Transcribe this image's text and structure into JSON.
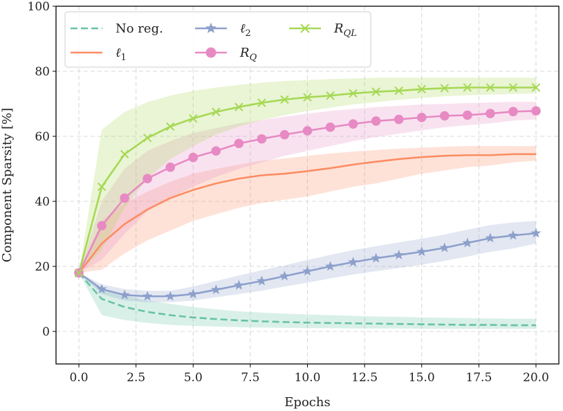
{
  "chart_data": {
    "type": "line",
    "title": "",
    "xlabel": "Epochs",
    "ylabel": "Component Sparsity [%]",
    "xlim": [
      -1,
      21
    ],
    "ylim": [
      -10,
      100
    ],
    "xticks": [
      0,
      2.5,
      5,
      7.5,
      10,
      12.5,
      15,
      17.5,
      20
    ],
    "xtick_labels": [
      "0.0",
      "2.5",
      "5.0",
      "7.5",
      "10.0",
      "12.5",
      "15.0",
      "17.5",
      "20.0"
    ],
    "yticks": [
      0,
      20,
      40,
      60,
      80,
      100
    ],
    "ytick_labels": [
      "0",
      "20",
      "40",
      "60",
      "80",
      "100"
    ],
    "grid": true,
    "legend_position": "top-left",
    "x": [
      0,
      1,
      2,
      3,
      4,
      5,
      6,
      7,
      8,
      9,
      10,
      11,
      12,
      13,
      14,
      15,
      16,
      17,
      18,
      19,
      20
    ],
    "series": [
      {
        "name": "No reg.",
        "color": "#66c2a5",
        "style": "dashed",
        "marker": "none",
        "values": [
          18,
          10,
          7.5,
          6,
          5,
          4.3,
          3.8,
          3.4,
          3.1,
          2.9,
          2.7,
          2.6,
          2.5,
          2.4,
          2.3,
          2.2,
          2.1,
          2.0,
          2.0,
          1.9,
          1.9
        ],
        "lower": [
          18,
          5,
          3.5,
          2.6,
          2.0,
          1.7,
          1.5,
          1.3,
          1.2,
          1.1,
          1.0,
          1.0,
          0.9,
          0.9,
          0.9,
          0.8,
          0.8,
          0.8,
          0.8,
          0.8,
          0.8
        ],
        "upper": [
          18,
          13,
          11,
          9.5,
          8.5,
          7.5,
          6.8,
          6.2,
          5.8,
          5.5,
          5.2,
          5.0,
          4.8,
          4.6,
          4.5,
          4.3,
          4.2,
          4.1,
          4.0,
          3.9,
          3.9
        ]
      },
      {
        "name": "ℓ1",
        "color": "#fc8d62",
        "style": "solid",
        "marker": "none",
        "values": [
          18,
          27,
          33,
          37.5,
          41,
          43.5,
          45.5,
          47,
          48,
          48.5,
          49.3,
          50.2,
          51.3,
          52.2,
          53,
          53.6,
          54,
          54.2,
          54.2,
          54.5,
          54.5
        ],
        "lower": [
          18,
          19,
          24,
          28,
          31,
          34,
          36,
          38,
          39.5,
          40.5,
          41.5,
          43,
          44.5,
          45.5,
          47,
          48.5,
          49.5,
          50.5,
          51,
          52,
          52.5
        ],
        "upper": [
          18,
          34,
          39.5,
          43,
          46,
          48.5,
          50,
          51.3,
          52.5,
          53.2,
          54,
          54.7,
          55.3,
          55.8,
          56.2,
          56.5,
          56.8,
          57,
          57,
          57,
          57
        ]
      },
      {
        "name": "ℓ2",
        "color": "#8da0cb",
        "style": "solid",
        "marker": "star",
        "values": [
          18,
          13,
          11.2,
          10.8,
          10.8,
          11.5,
          12.8,
          14.2,
          15.5,
          17,
          18.5,
          20,
          21.3,
          22.5,
          23.5,
          24.5,
          25.7,
          27.2,
          28.7,
          29.5,
          30.2
        ],
        "lower": [
          18,
          11.5,
          9.5,
          9.0,
          9.0,
          9.5,
          10.5,
          11.5,
          12.5,
          13.8,
          15,
          16.3,
          17.5,
          18.5,
          19.5,
          20.5,
          21.7,
          23,
          24.5,
          25.5,
          27
        ],
        "upper": [
          18,
          14.5,
          13,
          12.5,
          12.5,
          13.8,
          15.5,
          17.2,
          18.8,
          20.3,
          22,
          23.5,
          25,
          26.2,
          27.4,
          28.5,
          29.8,
          31.3,
          32.7,
          33.5,
          34
        ]
      },
      {
        "name": "RQ",
        "color": "#e78ac3",
        "style": "solid",
        "marker": "circle",
        "values": [
          18,
          32.5,
          41,
          47,
          50.5,
          53.5,
          55.5,
          57.8,
          59.2,
          60.5,
          61.7,
          62.8,
          63.8,
          64.7,
          65.2,
          65.8,
          66.3,
          66.5,
          67,
          67.6,
          67.8
        ],
        "lower": [
          18,
          22,
          30,
          37,
          41,
          44.5,
          47.5,
          50,
          52,
          54,
          55.5,
          57,
          58.5,
          59.8,
          60.8,
          61.8,
          62.8,
          63.4,
          64,
          64.8,
          65.2
        ],
        "upper": [
          18,
          40,
          50,
          55.5,
          58.5,
          61,
          62.5,
          64,
          65,
          66,
          67,
          67.8,
          68.4,
          69,
          69.4,
          69.8,
          70,
          70.2,
          70.4,
          70.6,
          70.6
        ]
      },
      {
        "name": "RQL",
        "color": "#a6d854",
        "style": "solid",
        "marker": "x",
        "values": [
          18,
          44.5,
          54.5,
          59.5,
          63,
          65.5,
          67.5,
          69,
          70.3,
          71.3,
          72,
          72.5,
          73.2,
          73.7,
          74,
          74.5,
          74.8,
          75,
          75,
          75,
          75
        ],
        "lower": [
          18,
          25,
          38,
          47,
          53,
          57,
          60.5,
          63,
          65,
          66.5,
          67.8,
          68.8,
          69.8,
          70.5,
          71.2,
          71.8,
          72.3,
          72.6,
          72.8,
          73,
          73.2
        ],
        "upper": [
          18,
          62,
          67.5,
          70.5,
          72.5,
          74,
          75,
          75.8,
          76.5,
          77,
          77.3,
          77.6,
          77.8,
          78,
          78,
          78,
          78,
          78,
          78,
          78,
          78
        ]
      }
    ]
  }
}
